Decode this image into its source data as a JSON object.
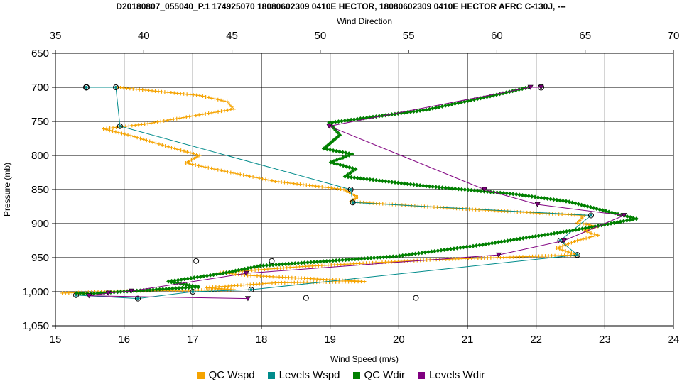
{
  "chart_data": {
    "type": "line",
    "title": "D20180807_055040_P.1 174925070 18080602309 0410E HECTOR, 18080602309 0410E HECTOR AFRC C-130J, ---",
    "xlabel": "Wind Speed (m/s)",
    "x2label": "Wind Direction",
    "ylabel": "Pressure (mb)",
    "xlim": [
      15,
      24
    ],
    "x2lim": [
      35,
      70
    ],
    "ylim": [
      650,
      1050
    ],
    "y_inverted": true,
    "grid": true,
    "legend_position": "bottom",
    "x_ticks": [
      "15",
      "16",
      "17",
      "18",
      "19",
      "20",
      "21",
      "22",
      "23",
      "24"
    ],
    "x2_ticks": [
      "35",
      "40",
      "45",
      "50",
      "55",
      "60",
      "65",
      "70"
    ],
    "y_ticks": [
      "650",
      "700",
      "750",
      "800",
      "850",
      "900",
      "950",
      "1,000",
      "1,050"
    ],
    "series": [
      {
        "name": "QC Wspd",
        "axis": "bottom",
        "color": "#f5a300",
        "marker": "plus",
        "points": [
          [
            15.9,
            700
          ],
          [
            17.1,
            712
          ],
          [
            17.5,
            721
          ],
          [
            17.6,
            732
          ],
          [
            17.0,
            742
          ],
          [
            16.3,
            754
          ],
          [
            15.7,
            761
          ],
          [
            16.1,
            771
          ],
          [
            16.6,
            786
          ],
          [
            17.1,
            800
          ],
          [
            16.9,
            811
          ],
          [
            17.6,
            826
          ],
          [
            18.2,
            838
          ],
          [
            19.2,
            850
          ],
          [
            19.4,
            861
          ],
          [
            19.3,
            868
          ],
          [
            20.7,
            877
          ],
          [
            22.1,
            885
          ],
          [
            22.7,
            888
          ],
          [
            22.6,
            899
          ],
          [
            22.9,
            904
          ],
          [
            22.7,
            911
          ],
          [
            22.9,
            917
          ],
          [
            22.6,
            925
          ],
          [
            22.3,
            936
          ],
          [
            22.6,
            946
          ],
          [
            20.5,
            953
          ],
          [
            18.6,
            963
          ],
          [
            17.4,
            972
          ],
          [
            17.8,
            976
          ],
          [
            19.5,
            985
          ],
          [
            18.2,
            987
          ],
          [
            17.2,
            994
          ],
          [
            17.6,
            997
          ],
          [
            16.0,
            999
          ],
          [
            15.1,
            1002
          ]
        ]
      },
      {
        "name": "Levels Wspd",
        "axis": "bottom",
        "color": "#008b8b",
        "marker": "circle",
        "points": [
          [
            15.45,
            700
          ],
          [
            15.88,
            700
          ],
          [
            15.94,
            757
          ],
          [
            19.3,
            850
          ],
          [
            19.33,
            869
          ],
          [
            22.8,
            888
          ],
          [
            22.35,
            925
          ],
          [
            22.6,
            946
          ],
          [
            17.85,
            997
          ],
          [
            17.0,
            1000
          ],
          [
            16.2,
            1010
          ],
          [
            15.3,
            1005
          ]
        ]
      },
      {
        "name": "QC Wdir",
        "axis": "top",
        "color": "#008000",
        "marker": "diamond",
        "points": [
          [
            61.8,
            700
          ],
          [
            59.8,
            712
          ],
          [
            56.0,
            733
          ],
          [
            50.5,
            752
          ],
          [
            51.1,
            770
          ],
          [
            50.2,
            790
          ],
          [
            51.8,
            798
          ],
          [
            50.6,
            810
          ],
          [
            52.0,
            820
          ],
          [
            51.4,
            831
          ],
          [
            56.0,
            845
          ],
          [
            61.1,
            857
          ],
          [
            64.1,
            868
          ],
          [
            67.9,
            893
          ],
          [
            64.3,
            910
          ],
          [
            59.2,
            931
          ],
          [
            54.3,
            948
          ],
          [
            46.6,
            962
          ],
          [
            44.5,
            973
          ],
          [
            41.4,
            985
          ],
          [
            43.1,
            993
          ],
          [
            38.7,
            1000
          ],
          [
            37.0,
            1003
          ],
          [
            36.2,
            1002
          ]
        ]
      },
      {
        "name": "Levels Wdir",
        "axis": "top",
        "color": "#800080",
        "marker": "triangle",
        "points": [
          [
            62.5,
            700
          ],
          [
            61.9,
            700
          ],
          [
            50.5,
            757
          ],
          [
            59.3,
            850
          ],
          [
            62.3,
            872
          ],
          [
            67.2,
            888
          ],
          [
            63.8,
            925
          ],
          [
            60.1,
            946
          ],
          [
            45.8,
            973
          ],
          [
            39.3,
            999
          ],
          [
            38.0,
            1002
          ],
          [
            36.9,
            1006
          ],
          [
            45.9,
            1010
          ]
        ]
      }
    ],
    "unlabeled_markers_bottom": [
      [
        17.05,
        955
      ],
      [
        18.15,
        955
      ],
      [
        18.65,
        1009
      ],
      [
        20.25,
        1009
      ]
    ]
  },
  "legend": {
    "items": [
      {
        "label": "QC Wspd",
        "color": "#f5a300"
      },
      {
        "label": "Levels Wspd",
        "color": "#008b8b"
      },
      {
        "label": "QC Wdir",
        "color": "#008000"
      },
      {
        "label": "Levels Wdir",
        "color": "#800080"
      }
    ]
  }
}
